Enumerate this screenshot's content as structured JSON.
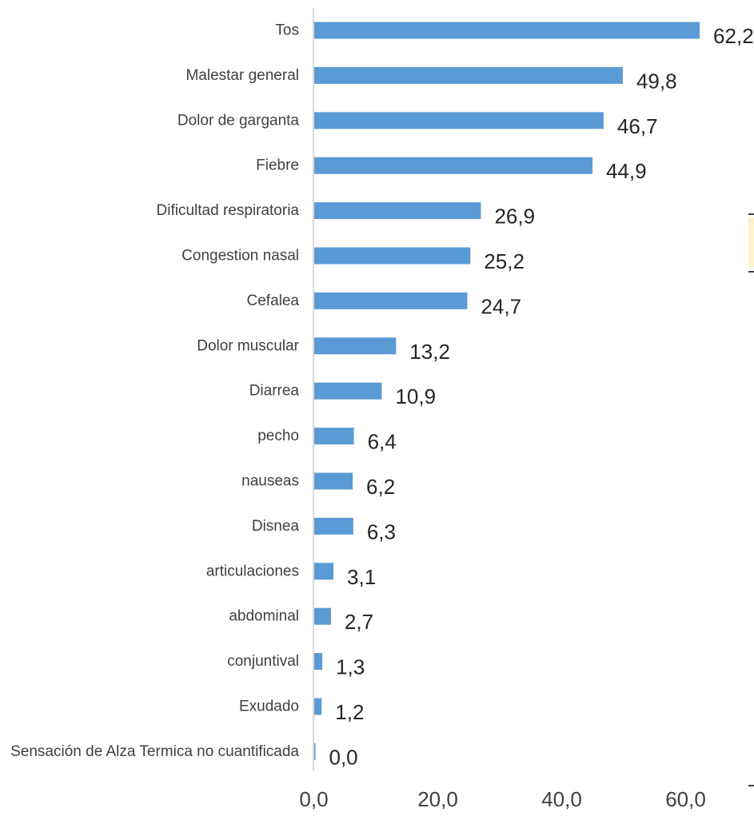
{
  "chart_data": {
    "type": "bar",
    "orientation": "horizontal",
    "categories": [
      "Tos",
      "Malestar general",
      "Dolor de garganta",
      "Fiebre",
      "Dificultad respiratoria",
      "Congestion nasal",
      "Cefalea",
      "Dolor muscular",
      "Diarrea",
      "pecho",
      "nauseas",
      "Disnea",
      "articulaciones",
      "abdominal",
      "conjuntival",
      "Exudado",
      "Sensación de Alza Termica no cuantificada"
    ],
    "values": [
      62.2,
      49.8,
      46.7,
      44.9,
      26.9,
      25.2,
      24.7,
      13.2,
      10.9,
      6.4,
      6.2,
      6.3,
      3.1,
      2.7,
      1.3,
      1.2,
      0.0
    ],
    "value_labels": [
      "62,2",
      "49,8",
      "46,7",
      "44,9",
      "26,9",
      "25,2",
      "24,7",
      "13,2",
      "10,9",
      "6,4",
      "6,2",
      "6,3",
      "3,1",
      "2,7",
      "1,3",
      "1,2",
      "0,0"
    ],
    "xlim": [
      0,
      60
    ],
    "xticks": [
      0,
      20,
      40,
      60
    ],
    "xtick_labels": [
      "0,0",
      "20,0",
      "40,0",
      "60,0"
    ],
    "title": "",
    "xlabel": "",
    "ylabel": "",
    "bar_color": "#5b9bd5",
    "grid": false,
    "legend": "none"
  }
}
